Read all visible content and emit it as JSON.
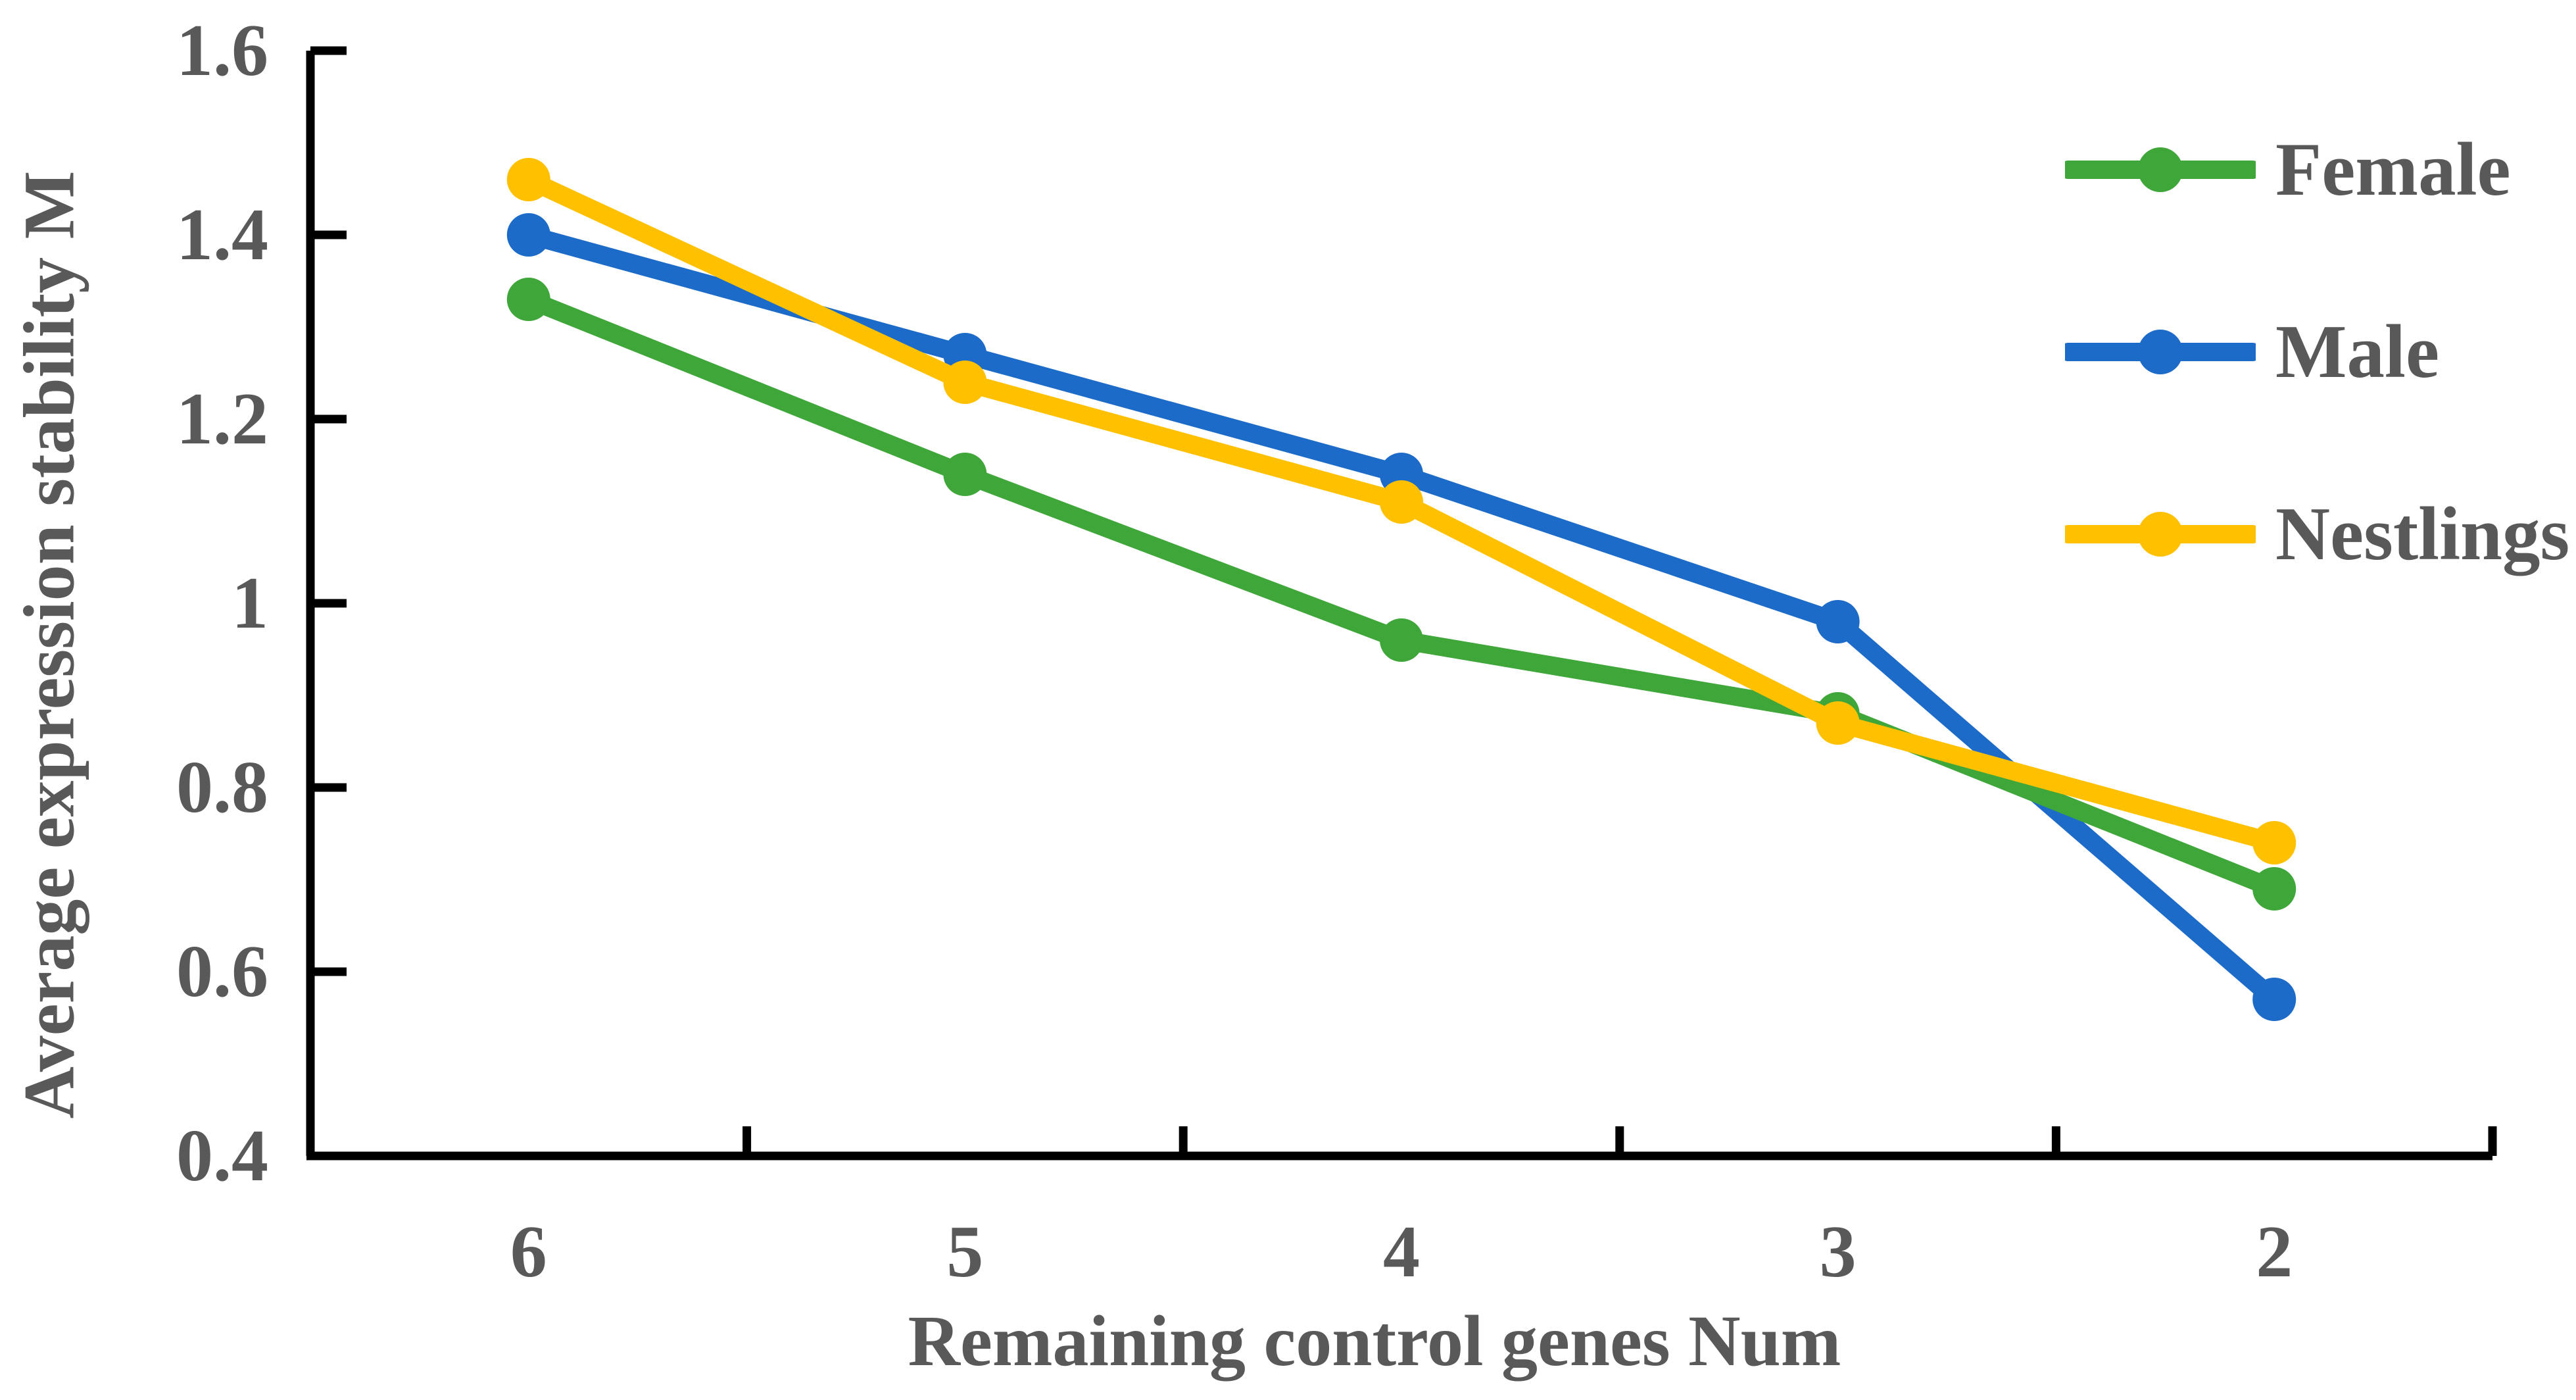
{
  "chart_data": {
    "type": "line",
    "title": "",
    "xlabel": "Remaining control genes Num",
    "ylabel": "Average expression stability M",
    "categories": [
      "6",
      "5",
      "4",
      "3",
      "2"
    ],
    "y_ticks": [
      "1.6",
      "1.4",
      "1.2",
      "1",
      "0.8",
      "0.6",
      "0.4"
    ],
    "ylim": [
      0.4,
      1.6
    ],
    "x_axis_reversed_note": "categories run 6 down to 2 left-to-right",
    "grid": false,
    "legend_position": "right",
    "series": [
      {
        "name": "Female",
        "color": "#3FA73A",
        "values": [
          1.33,
          1.14,
          0.96,
          0.88,
          0.69
        ]
      },
      {
        "name": "Male",
        "color": "#1C6BC9",
        "values": [
          1.4,
          1.27,
          1.14,
          0.98,
          0.57
        ]
      },
      {
        "name": "Nestlings",
        "color": "#FFC000",
        "values": [
          1.46,
          1.24,
          1.11,
          0.87,
          0.74
        ]
      }
    ],
    "draw_order": [
      "Male",
      "Female",
      "Nestlings"
    ],
    "marker": "circle",
    "text_color": "#595959",
    "axis_color": "#000000"
  }
}
